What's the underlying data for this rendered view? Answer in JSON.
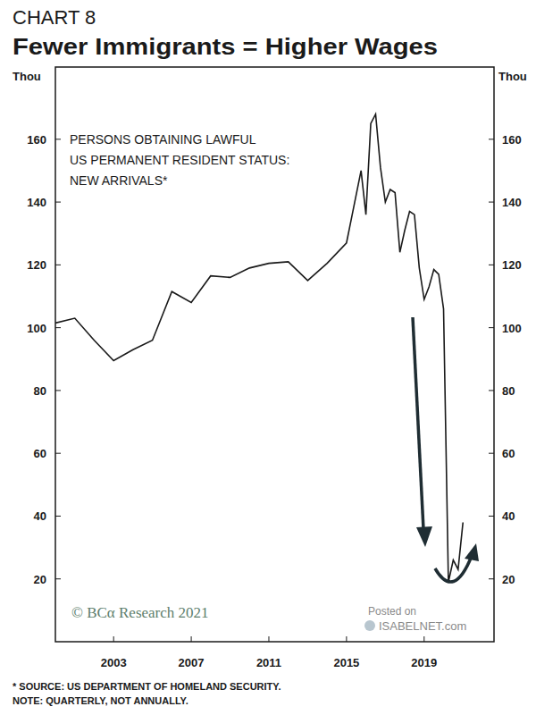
{
  "chart_data": {
    "type": "line",
    "subtitle": "CHART 8",
    "title": "Fewer Immigrants = Higher Wages",
    "y_label": "Thou",
    "annotations": [
      "PERSONS OBTAINING LAWFUL",
      "US PERMANENT RESIDENT STATUS:",
      "NEW ARRIVALS*",
      "© BCα Research 2021",
      "Posted on",
      "ISABELNET.com",
      "* SOURCE: US DEPARTMENT OF HOMELAND SECURITY.",
      "NOTE: QUARTERLY, NOT ANNUALLY."
    ],
    "x": [
      2000,
      2001,
      2002,
      2003,
      2004,
      2005,
      2006,
      2007,
      2008,
      2009,
      2010,
      2011,
      2012,
      2013,
      2014,
      2015,
      2015.75,
      2016,
      2016.25,
      2016.5,
      2016.75,
      2017,
      2017.25,
      2017.5,
      2017.75,
      2018,
      2018.25,
      2018.5,
      2018.75,
      2019,
      2019.25,
      2019.5,
      2019.75,
      2020,
      2020.25,
      2020.5,
      2020.75,
      2021
    ],
    "series": [
      {
        "color": "#1a1a1a",
        "values": [
          101.5,
          103,
          96,
          89.5,
          93,
          96,
          111.5,
          108,
          116.5,
          116,
          119,
          120.5,
          121,
          115,
          120.5,
          127,
          150,
          136,
          165,
          168,
          151,
          140,
          144,
          143,
          124,
          131,
          137,
          136,
          119,
          109,
          113,
          118.5,
          117,
          106,
          19,
          26,
          23,
          38
        ]
      }
    ],
    "xlim": [
      2000,
      2022.6
    ],
    "xticks": [
      2003,
      2007,
      2011,
      2015,
      2019
    ],
    "ylim": [
      0,
      183
    ],
    "yticks": [
      20,
      40,
      60,
      80,
      100,
      120,
      140,
      160
    ],
    "grid": false
  }
}
